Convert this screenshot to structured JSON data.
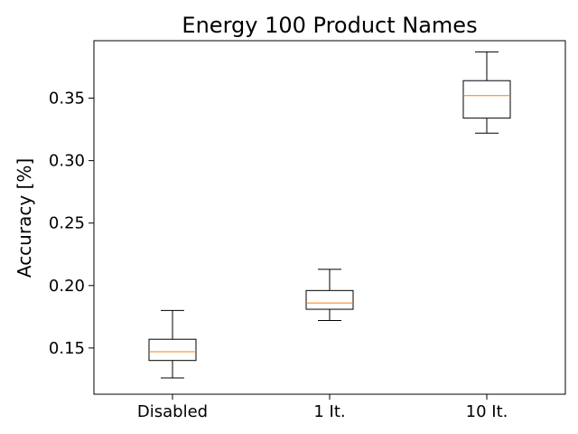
{
  "chart_data": {
    "type": "box",
    "title": "Energy 100 Product Names",
    "xlabel": "",
    "ylabel": "Accuracy [%]",
    "ylim": [
      0.113,
      0.396
    ],
    "yticks": [
      "0.15",
      "0.20",
      "0.25",
      "0.30",
      "0.35"
    ],
    "grid": false,
    "categories": [
      "Disabled",
      "1 It.",
      "10 It."
    ],
    "boxes": [
      {
        "min": 0.126,
        "q1": 0.14,
        "median": 0.147,
        "q3": 0.157,
        "max": 0.18
      },
      {
        "min": 0.172,
        "q1": 0.181,
        "median": 0.186,
        "q3": 0.196,
        "max": 0.213
      },
      {
        "min": 0.322,
        "q1": 0.334,
        "median": 0.352,
        "q3": 0.364,
        "max": 0.387
      }
    ],
    "colors": {
      "box": "#000000",
      "median": "#ff7f0e"
    }
  }
}
